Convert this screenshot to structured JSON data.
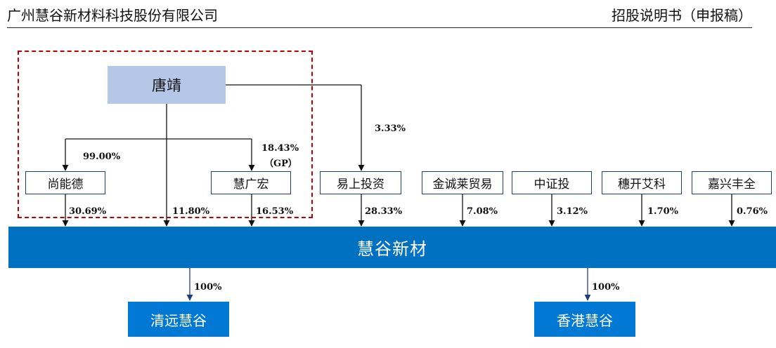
{
  "header": {
    "company": "广州慧谷新材料科技股份有限公司",
    "doc_title": "招股说明书（申报稿）"
  },
  "nodes": {
    "tangjing": "唐靖",
    "shangnengde": "尚能德",
    "huiguanghong": "慧广宏",
    "yishang": "易上投资",
    "jincheng": "金诚莱贸易",
    "zhongzheng": "中证投",
    "suikai": "穗开艾科",
    "jiaxing": "嘉兴丰全",
    "company": "慧谷新材",
    "qingyuan": "清远慧谷",
    "hongkong": "香港慧谷"
  },
  "edges": {
    "tang_to_shangnengde": "99.00%",
    "tang_to_huiguanghong": "18.43%",
    "gp_note": "（GP）",
    "tang_to_yishang": "3.33%",
    "shangnengde_to_company": "30.69%",
    "tang_to_company": "11.80%",
    "huiguanghong_to_company": "16.53%",
    "yishang_to_company": "28.33%",
    "jincheng_to_company": "7.08%",
    "zhongzheng_to_company": "3.12%",
    "suikai_to_company": "1.70%",
    "jiaxing_to_company": "0.76%",
    "company_to_qingyuan": "100%",
    "company_to_hongkong": "100%"
  },
  "colors": {
    "company_bar": "#0070c0",
    "subsidiary": "#0078d4",
    "controller_box": "#b4c7e7",
    "dashed_border": "#c00000"
  }
}
